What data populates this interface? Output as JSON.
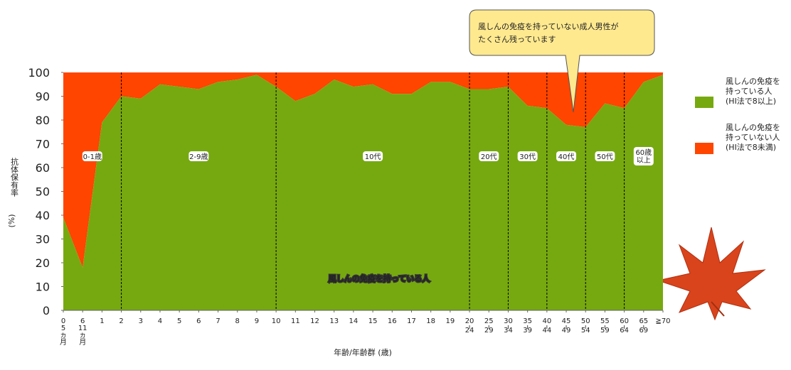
{
  "chart_data": {
    "type": "area",
    "annotation": "風しんの免疫を持っていない成人男性が\nたくさん残っています",
    "area_label": "風しんの免疫を持っている人",
    "y_label": "抗体保有率",
    "y_unit": "(%)",
    "x_label": "年齢/年齢群 (歳)",
    "categories": [
      "0\n5\nヵ\n月",
      "6\n11\nヵ\n月",
      "1",
      "2",
      "3",
      "4",
      "5",
      "6",
      "7",
      "8",
      "9",
      "10",
      "11",
      "12",
      "13",
      "14",
      "15",
      "16",
      "17",
      "18",
      "19",
      "20\n24",
      "25\n29",
      "30\n34",
      "35\n39",
      "40\n44",
      "45\n49",
      "50\n54",
      "55\n59",
      "60\n64",
      "65\n69",
      "≧70"
    ],
    "groups": [
      "0-1歳",
      "2-9歳",
      "10代",
      "20代",
      "30代",
      "40代",
      "50代",
      "60歳\n以上"
    ],
    "series": [
      {
        "name": "風しんの免疫を\n持っている人\n(HI法で8以上)",
        "color": "#76a910",
        "values": [
          39,
          18,
          79,
          90,
          89,
          95,
          94,
          93,
          96,
          97,
          99,
          94,
          88,
          91,
          97,
          94,
          95,
          91,
          91,
          96,
          96,
          93,
          93,
          94,
          86,
          85,
          78,
          77,
          87,
          85,
          96,
          99
        ]
      },
      {
        "name": "風しんの免疫を\n持っていない人\n(HI法で8未満)",
        "color": "#ff4500",
        "values": [
          61,
          82,
          21,
          10,
          11,
          5,
          6,
          7,
          4,
          3,
          1,
          6,
          12,
          9,
          3,
          6,
          5,
          9,
          9,
          4,
          4,
          7,
          7,
          6,
          14,
          15,
          22,
          23,
          13,
          15,
          4,
          1
        ]
      }
    ],
    "ylim": [
      0,
      100
    ],
    "yticks": [
      0,
      10,
      20,
      30,
      40,
      50,
      60,
      70,
      80,
      90,
      100
    ]
  }
}
